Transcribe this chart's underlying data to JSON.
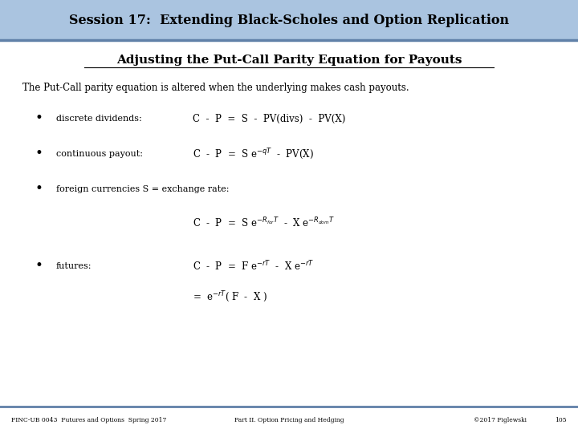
{
  "header_text": "Session 17:  Extending Black-Scholes and Option Replication",
  "header_bg": "#aac4e0",
  "header_line_color": "#6080a8",
  "title_text": "Adjusting the Put-Call Parity Equation for Payouts",
  "intro_text": "The Put-Call parity equation is altered when the underlying makes cash payouts.",
  "footer_left": "FINC-UB 0043  Futures and Options  Spring 2017",
  "footer_center": "Part II. Option Pricing and Hedging",
  "footer_right": "©2017 Figlewski",
  "footer_page": "105",
  "bg_color": "#ffffff",
  "text_color": "#000000",
  "footer_line_color": "#6080a8"
}
